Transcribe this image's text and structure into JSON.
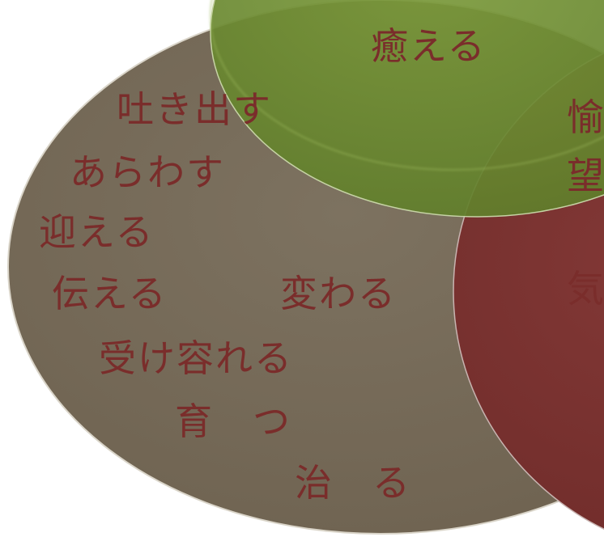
{
  "diagram": {
    "colors": {
      "brown_circle": "#776b57",
      "green_circle": "#6b8a2f",
      "red_circle": "#7b3330",
      "text": "#7a2d2b"
    },
    "green_label": "癒える",
    "brown_words": {
      "hakidasu": "吐き出す",
      "arawasu": "あらわす",
      "mukaeru": "迎える",
      "tsutaeru": "伝える",
      "kawaru": "変わる",
      "ukeireru": "受け容れる",
      "sodatsu": "育　つ",
      "naoru": "治　る"
    },
    "right_words": {
      "yu": "愉",
      "nozomu": "望",
      "ki": "気"
    }
  }
}
